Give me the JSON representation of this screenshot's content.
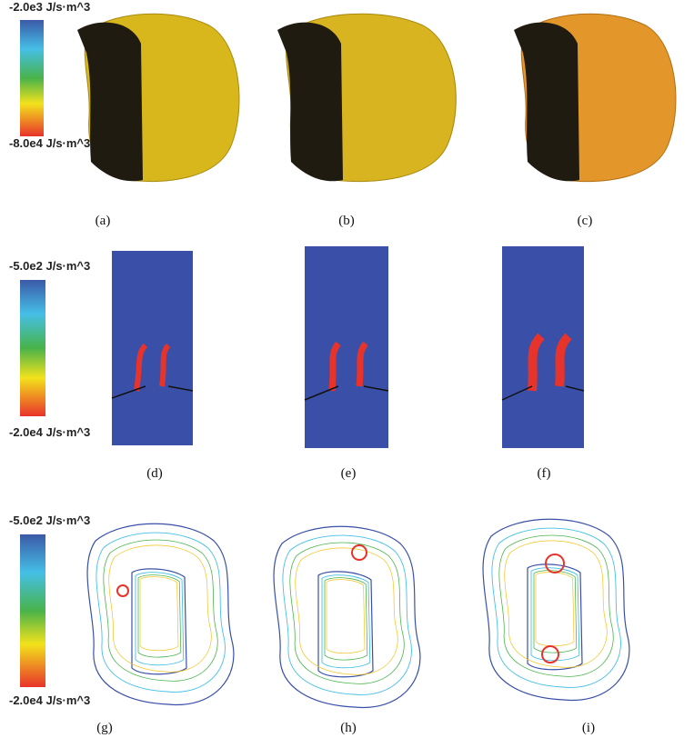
{
  "rows": [
    {
      "scale_top": "-2.0e3 J/s·m^3",
      "scale_bottom": "-8.0e4 J/s·m^3",
      "captions": [
        "(a)",
        "(b)",
        "(c)"
      ]
    },
    {
      "scale_top": "-5.0e2 J/s·m^3",
      "scale_bottom": "-2.0e4 J/s·m^3",
      "captions": [
        "(d)",
        "(e)",
        "(f)"
      ]
    },
    {
      "scale_top": "-5.0e2 J/s·m^3",
      "scale_bottom": "-2.0e4 J/s·m^3",
      "captions": [
        "(g)",
        "(h)",
        "(i)"
      ]
    }
  ]
}
